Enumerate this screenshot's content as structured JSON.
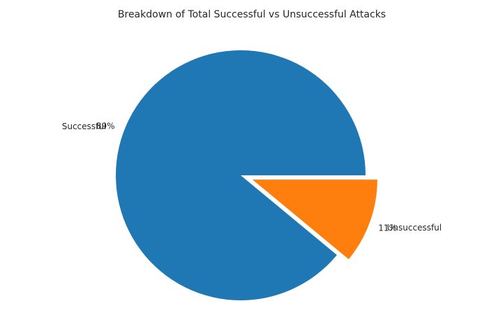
{
  "chart_data": {
    "type": "pie",
    "title": "Breakdown of Total Successful vs Unsuccessful Attacks",
    "slices": [
      {
        "label": "Successful",
        "value": 89,
        "pct_label": "89%",
        "color": "#1f77b4",
        "explode": 0
      },
      {
        "label": "Unsuccessful",
        "value": 11,
        "pct_label": "11%",
        "color": "#ff7f0e",
        "explode": 0.1
      }
    ],
    "start_angle_deg": 0,
    "direction": "counterclockwise",
    "legend": "none"
  }
}
